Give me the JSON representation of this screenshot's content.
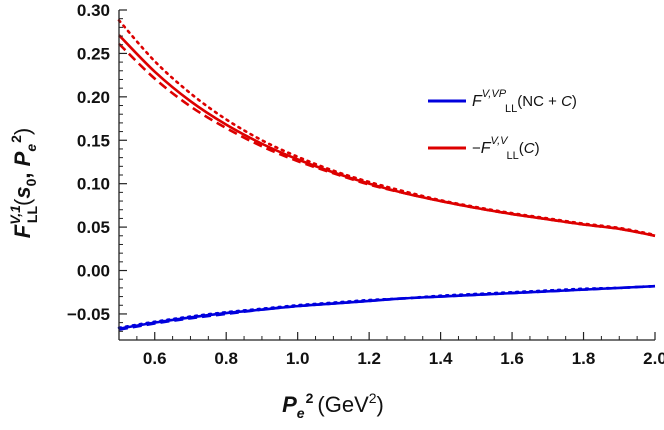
{
  "chart_data": {
    "type": "line",
    "title": "",
    "xlabel": {
      "base": "P",
      "sub": "e",
      "sup": "2",
      "unit_open": "(GeV",
      "unit_sup": "2",
      "unit_close": ")"
    },
    "ylabel": {
      "base": "F",
      "sup": "V,1",
      "sub": "LL",
      "open": "(",
      "s": "s",
      "s_sub": "0",
      "comma": ", ",
      "P": "P",
      "P_sub": "e",
      "P_sup": "2",
      "close": ")"
    },
    "xlim": [
      0.5,
      2.0
    ],
    "ylim": [
      -0.08,
      0.3
    ],
    "x_ticks": [
      0.6,
      0.8,
      1.0,
      1.2,
      1.4,
      1.6,
      1.8,
      2.0
    ],
    "x_tick_labels": [
      "0.6",
      "0.8",
      "1.0",
      "1.2",
      "1.4",
      "1.6",
      "1.8",
      "2.0"
    ],
    "y_ticks": [
      -0.05,
      0.0,
      0.05,
      0.1,
      0.15,
      0.2,
      0.25,
      0.3
    ],
    "y_tick_labels": [
      "−0.05",
      "0.00",
      "0.05",
      "0.10",
      "0.15",
      "0.20",
      "0.25",
      "0.30"
    ],
    "grid": false,
    "legend_position": "right",
    "x": [
      0.5,
      0.6,
      0.7,
      0.8,
      0.9,
      1.0,
      1.1,
      1.2,
      1.3,
      1.4,
      1.5,
      1.6,
      1.7,
      1.8,
      1.9,
      2.0
    ],
    "series": [
      {
        "name": "F^{V,VP}_{LL}(NC + C)",
        "color": "#0000dd",
        "style": "solid",
        "values": [
          -0.067,
          -0.06,
          -0.054,
          -0.049,
          -0.045,
          -0.041,
          -0.038,
          -0.035,
          -0.032,
          -0.03,
          -0.028,
          -0.026,
          -0.024,
          -0.022,
          -0.02,
          -0.018
        ]
      },
      {
        "name": "−F^{V,V}_{LL}(C)",
        "color": "#dd0000",
        "style": "solid",
        "values": [
          0.271,
          0.229,
          0.195,
          0.168,
          0.146,
          0.128,
          0.113,
          0.1,
          0.089,
          0.08,
          0.072,
          0.065,
          0.059,
          0.053,
          0.048,
          0.04
        ]
      },
      {
        "color": "#dd0000",
        "style": "dashed",
        "values": [
          0.261,
          0.221,
          0.189,
          0.164,
          0.143,
          0.126,
          0.112,
          0.099,
          0.089,
          0.08,
          0.072,
          0.065,
          0.059,
          0.053,
          0.048,
          0.04
        ]
      },
      {
        "color": "#dd0000",
        "style": "dotted",
        "values": [
          0.288,
          0.241,
          0.204,
          0.174,
          0.15,
          0.131,
          0.115,
          0.102,
          0.091,
          0.081,
          0.073,
          0.066,
          0.06,
          0.054,
          0.049,
          0.041
        ]
      },
      {
        "color": "#0000dd",
        "style": "dashed",
        "values": [
          -0.068,
          -0.061,
          -0.055,
          -0.05,
          -0.045,
          -0.041,
          -0.038,
          -0.035,
          -0.032,
          -0.03,
          -0.028,
          -0.026,
          -0.024,
          -0.022,
          -0.02,
          -0.018
        ]
      },
      {
        "color": "#0000dd",
        "style": "dotted",
        "values": [
          -0.066,
          -0.059,
          -0.053,
          -0.048,
          -0.044,
          -0.04,
          -0.037,
          -0.034,
          -0.032,
          -0.029,
          -0.027,
          -0.025,
          -0.023,
          -0.021,
          -0.02,
          -0.018
        ]
      }
    ],
    "legend": [
      {
        "base": "F",
        "sup": "V,VP",
        "sub": "LL",
        "suffix_open": "(NC + ",
        "suffix_it": "C",
        "suffix_close": ")",
        "prefix": "",
        "color": "#0000dd"
      },
      {
        "prefix": "−",
        "base": "F",
        "sup": "V,V",
        "sub": "LL",
        "suffix_open": "(",
        "suffix_it": "C",
        "suffix_close": ")",
        "color": "#dd0000"
      }
    ]
  }
}
